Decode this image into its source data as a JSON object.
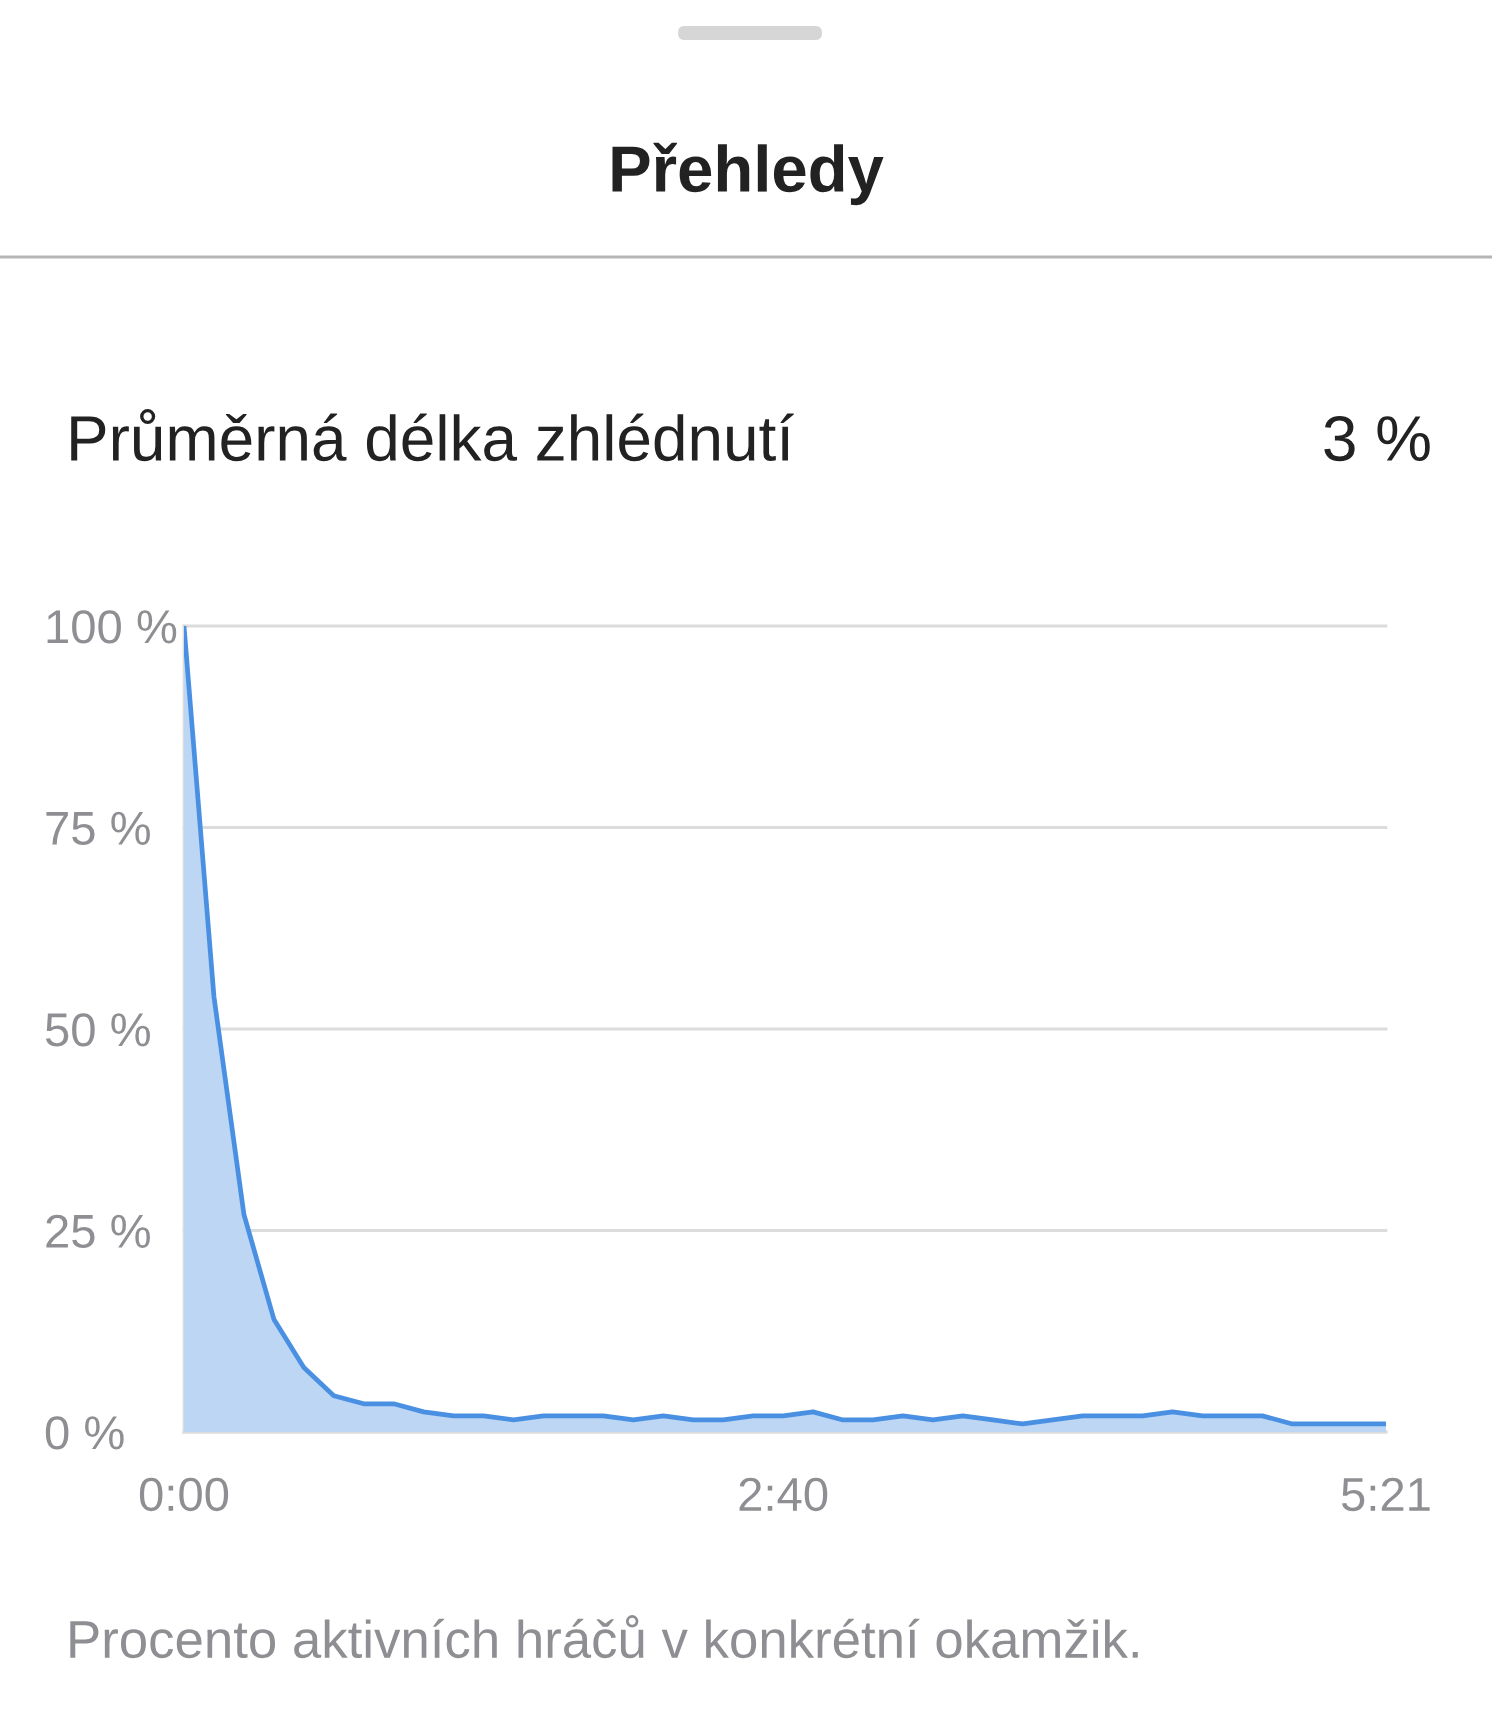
{
  "chart_data": {
    "type": "area",
    "title": "Přehledy",
    "subtitle": "Průměrná délka zhlédnutí",
    "annotations": [
      "3 %",
      "Procento aktivních hráčů v konkrétní okamžik."
    ],
    "x": [
      0,
      8,
      16,
      24,
      32,
      40,
      48,
      56,
      64,
      72,
      80,
      88,
      96,
      104,
      112,
      120,
      128,
      136,
      144,
      152,
      160,
      168,
      176,
      184,
      192,
      200,
      208,
      216,
      224,
      232,
      240,
      248,
      256,
      264,
      272,
      280,
      288,
      296,
      304,
      312,
      321
    ],
    "values": [
      100,
      54,
      27,
      14,
      8,
      4.5,
      3.5,
      3.5,
      2.5,
      2,
      2,
      1.5,
      2,
      2,
      2,
      1.5,
      2,
      1.5,
      1.5,
      2,
      2,
      2.5,
      1.5,
      1.5,
      2,
      1.5,
      2,
      1.5,
      1,
      1.5,
      2,
      2,
      2,
      2.5,
      2,
      2,
      2,
      1,
      1,
      1,
      1
    ],
    "color": "#4a90e2",
    "xlim": [
      0,
      321
    ],
    "xticks": [
      {
        "value": 0,
        "label": "0:00"
      },
      {
        "value": 160,
        "label": "2:40"
      },
      {
        "value": 321,
        "label": "5:21"
      }
    ],
    "ylim": [
      0,
      100
    ],
    "yticks": [
      {
        "value": 0,
        "label": "0 %"
      },
      {
        "value": 25,
        "label": "25 %"
      },
      {
        "value": 50,
        "label": "50 %"
      },
      {
        "value": 75,
        "label": "75 %"
      },
      {
        "value": 100,
        "label": "100 %"
      }
    ],
    "grid": "y",
    "line_style": "solid"
  }
}
